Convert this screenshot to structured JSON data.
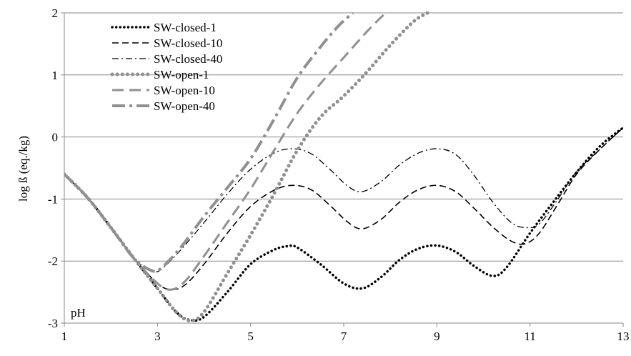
{
  "chart_data": {
    "type": "line",
    "xlabel": "",
    "ylabel": "log ß (eq./kg)",
    "annotation": "pH",
    "xlim": [
      1,
      13
    ],
    "ylim": [
      -3,
      2
    ],
    "x_ticks": [
      1,
      3,
      5,
      7,
      9,
      11,
      13
    ],
    "y_ticks": [
      -3,
      -2,
      -1,
      0,
      1,
      2
    ],
    "grid": "horizontal",
    "legend_position": "top-left",
    "series": [
      {
        "name": "SW-closed-1",
        "color": "#000000",
        "style": "dotted",
        "x": [
          1,
          1.5,
          2,
          2.5,
          3,
          3.4,
          3.7,
          4.0,
          4.5,
          5.0,
          5.5,
          5.8,
          6.0,
          6.5,
          7.0,
          7.4,
          7.8,
          8.2,
          8.6,
          9.0,
          9.4,
          9.8,
          10.2,
          10.5,
          11.0,
          11.5,
          12.0,
          12.5,
          13.0
        ],
        "y": [
          -0.6,
          -0.98,
          -1.46,
          -1.96,
          -2.44,
          -2.82,
          -2.95,
          -2.9,
          -2.5,
          -2.05,
          -1.82,
          -1.76,
          -1.78,
          -2.05,
          -2.36,
          -2.44,
          -2.26,
          -1.98,
          -1.8,
          -1.75,
          -1.85,
          -2.08,
          -2.24,
          -2.1,
          -1.55,
          -1.05,
          -0.57,
          -0.15,
          0.15
        ]
      },
      {
        "name": "SW-closed-10",
        "color": "#000000",
        "style": "dashed",
        "x": [
          1,
          1.5,
          2,
          2.5,
          3,
          3.3,
          3.6,
          4.0,
          4.5,
          5.0,
          5.5,
          5.9,
          6.3,
          6.7,
          7.1,
          7.4,
          7.8,
          8.2,
          8.6,
          9.0,
          9.4,
          9.8,
          10.2,
          10.6,
          10.9,
          11.2,
          11.6,
          12.0,
          12.5,
          13.0
        ],
        "y": [
          -0.6,
          -0.98,
          -1.46,
          -1.96,
          -2.36,
          -2.46,
          -2.38,
          -2.05,
          -1.55,
          -1.12,
          -0.86,
          -0.78,
          -0.85,
          -1.1,
          -1.38,
          -1.48,
          -1.33,
          -1.05,
          -0.85,
          -0.78,
          -0.88,
          -1.15,
          -1.45,
          -1.68,
          -1.72,
          -1.55,
          -1.08,
          -0.6,
          -0.2,
          0.15
        ]
      },
      {
        "name": "SW-closed-40",
        "color": "#000000",
        "style": "dashdot",
        "x": [
          1,
          1.5,
          2,
          2.5,
          2.9,
          3.1,
          3.5,
          4.0,
          4.5,
          5.0,
          5.5,
          5.9,
          6.3,
          6.7,
          7.1,
          7.4,
          7.8,
          8.2,
          8.6,
          9.0,
          9.4,
          9.8,
          10.2,
          10.6,
          10.9,
          11.2,
          11.6,
          12.0,
          12.5,
          13.0
        ],
        "y": [
          -0.6,
          -0.98,
          -1.46,
          -1.96,
          -2.16,
          -2.12,
          -1.82,
          -1.38,
          -0.92,
          -0.52,
          -0.26,
          -0.19,
          -0.27,
          -0.52,
          -0.8,
          -0.88,
          -0.72,
          -0.45,
          -0.26,
          -0.19,
          -0.28,
          -0.62,
          -1.05,
          -1.38,
          -1.46,
          -1.4,
          -1.0,
          -0.56,
          -0.2,
          0.15
        ]
      },
      {
        "name": "SW-open-1",
        "color": "#909090",
        "style": "dotted-thick",
        "x": [
          1,
          1.5,
          2,
          2.5,
          3,
          3.4,
          3.7,
          4.0,
          4.5,
          5.0,
          5.5,
          6.0,
          6.5,
          7.0,
          7.5,
          8.0,
          8.5,
          8.8
        ],
        "y": [
          -0.6,
          -0.98,
          -1.46,
          -1.96,
          -2.44,
          -2.82,
          -2.96,
          -2.82,
          -2.2,
          -1.58,
          -0.92,
          -0.22,
          0.32,
          0.66,
          1.05,
          1.48,
          1.86,
          2.0
        ]
      },
      {
        "name": "SW-open-10",
        "color": "#909090",
        "style": "dashed-thick",
        "x": [
          1,
          1.5,
          2,
          2.5,
          3,
          3.3,
          3.6,
          4.0,
          4.5,
          5.0,
          5.5,
          6.0,
          6.5,
          7.0,
          7.5,
          7.9
        ],
        "y": [
          -0.6,
          -0.98,
          -1.46,
          -1.96,
          -2.36,
          -2.46,
          -2.32,
          -1.92,
          -1.38,
          -0.84,
          -0.22,
          0.38,
          0.86,
          1.28,
          1.7,
          2.0
        ]
      },
      {
        "name": "SW-open-40",
        "color": "#909090",
        "style": "dashdot-thick",
        "x": [
          1,
          1.5,
          2,
          2.5,
          2.9,
          3.1,
          3.5,
          4.0,
          4.5,
          5.0,
          5.5,
          6.0,
          6.5,
          6.9,
          7.2
        ],
        "y": [
          -0.6,
          -0.98,
          -1.46,
          -1.96,
          -2.16,
          -2.1,
          -1.78,
          -1.28,
          -0.82,
          -0.35,
          0.28,
          0.95,
          1.45,
          1.8,
          2.0
        ]
      }
    ]
  }
}
